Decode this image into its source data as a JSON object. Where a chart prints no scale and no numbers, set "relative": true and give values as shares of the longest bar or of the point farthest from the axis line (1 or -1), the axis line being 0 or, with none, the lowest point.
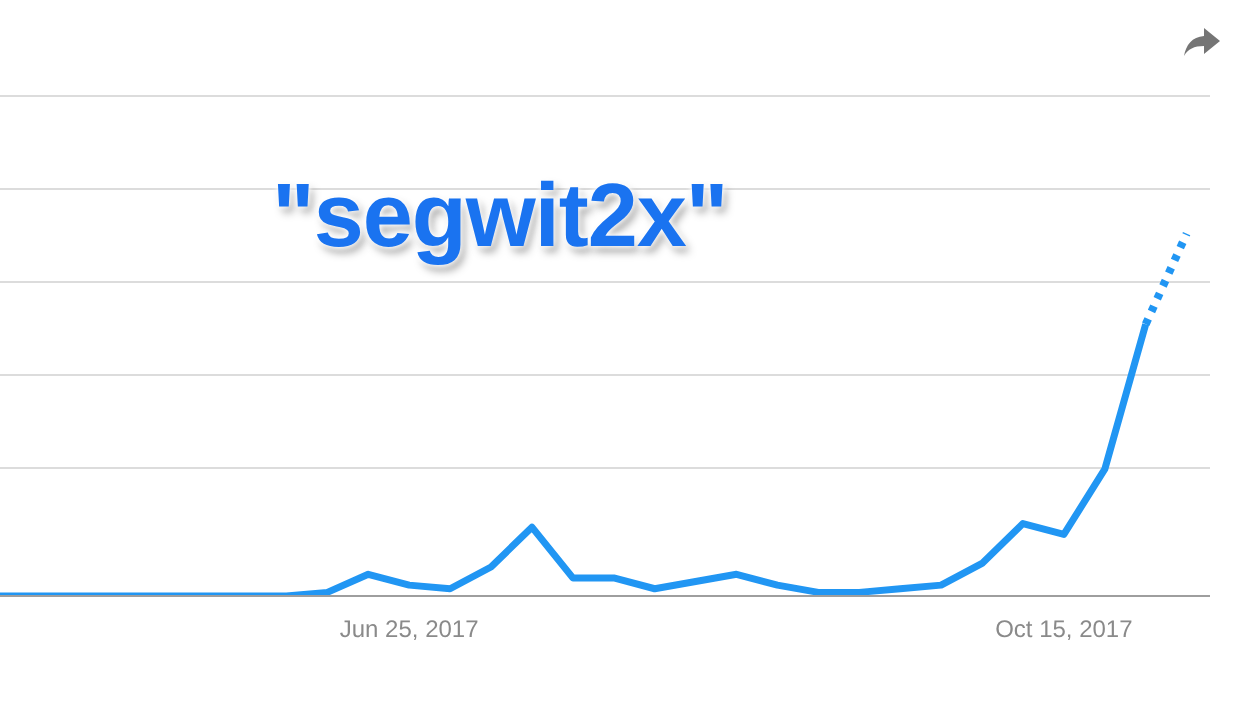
{
  "chart_data": {
    "type": "line",
    "title": "\"segwit2x\"",
    "relative": true,
    "grid": "y",
    "marker": "none",
    "x": [
      "2017-04-16",
      "2017-04-23",
      "2017-04-30",
      "2017-05-07",
      "2017-05-14",
      "2017-05-21",
      "2017-05-28",
      "2017-06-04",
      "2017-06-11",
      "2017-06-18",
      "2017-06-25",
      "2017-07-02",
      "2017-07-09",
      "2017-07-16",
      "2017-07-23",
      "2017-07-30",
      "2017-08-06",
      "2017-08-13",
      "2017-08-20",
      "2017-08-27",
      "2017-09-03",
      "2017-09-10",
      "2017-09-17",
      "2017-09-24",
      "2017-10-01",
      "2017-10-08",
      "2017-10-15",
      "2017-10-22",
      "2017-10-29",
      "2017-11-05"
    ],
    "xlim": [
      "2017-04-16",
      "2017-11-09"
    ],
    "xticks": [
      {
        "value": "2017-06-25",
        "label": "Jun 25, 2017"
      },
      {
        "value": "2017-10-15",
        "label": "Oct 15, 2017"
      }
    ],
    "series": [
      {
        "color": "#2196f3",
        "line_style": "solid",
        "values": [
          0,
          0,
          0,
          0,
          0,
          0,
          0,
          0,
          0.01,
          0.06,
          0.03,
          0.02,
          0.08,
          0.19,
          0.05,
          0.05,
          0.02,
          0.04,
          0.06,
          0.03,
          0.01,
          0.01,
          0.02,
          0.03,
          0.09,
          0.2,
          0.17,
          0.35,
          0.75,
          null
        ]
      },
      {
        "color": "#2196f3",
        "line_style": "dotted",
        "values": [
          null,
          null,
          null,
          null,
          null,
          null,
          null,
          null,
          null,
          null,
          null,
          null,
          null,
          null,
          null,
          null,
          null,
          null,
          null,
          null,
          null,
          null,
          null,
          null,
          null,
          null,
          null,
          null,
          0.75,
          1
        ]
      }
    ]
  }
}
